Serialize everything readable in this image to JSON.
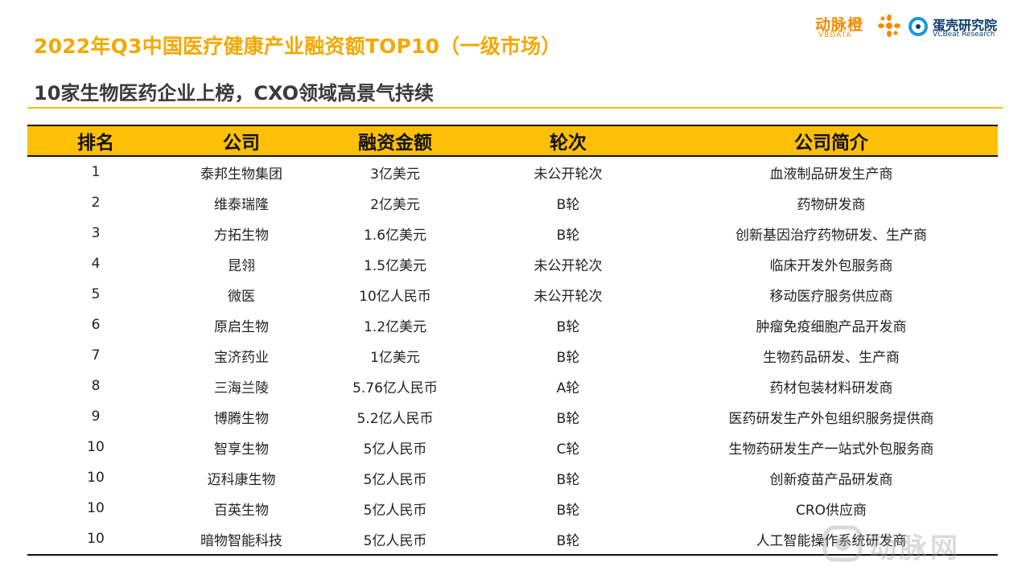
{
  "header": {
    "title": "2022年Q3中国医疗健康产业融资额TOP10（一级市场）",
    "subtitle": "10家生物医药企业上榜，CXO领域高景气持续"
  },
  "logos": {
    "vbdata_cn": "动脉橙",
    "vbdata_en": "VBDATA",
    "vcbeat_cn": "蛋壳研究院",
    "vcbeat_en": "VCBeat Research"
  },
  "table": {
    "columns": [
      "排名",
      "公司",
      "融资金额",
      "轮次",
      "公司简介"
    ],
    "rows": [
      [
        "1",
        "泰邦生物集团",
        "3亿美元",
        "未公开轮次",
        "血液制品研发生产商"
      ],
      [
        "2",
        "维泰瑞隆",
        "2亿美元",
        "B轮",
        "药物研发商"
      ],
      [
        "3",
        "方拓生物",
        "1.6亿美元",
        "B轮",
        "创新基因治疗药物研发、生产商"
      ],
      [
        "4",
        "昆翎",
        "1.5亿美元",
        "未公开轮次",
        "临床开发外包服务商"
      ],
      [
        "5",
        "微医",
        "10亿人民币",
        "未公开轮次",
        "移动医疗服务供应商"
      ],
      [
        "6",
        "原启生物",
        "1.2亿美元",
        "B轮",
        "肿瘤免疫细胞产品开发商"
      ],
      [
        "7",
        "宝济药业",
        "1亿美元",
        "B轮",
        "生物药品研发、生产商"
      ],
      [
        "8",
        "三海兰陵",
        "5.76亿人民币",
        "A轮",
        "药材包装材料研发商"
      ],
      [
        "9",
        "博腾生物",
        "5.2亿人民币",
        "B轮",
        "医药研发生产外包组织服务提供商"
      ],
      [
        "10",
        "智享生物",
        "5亿人民币",
        "C轮",
        "生物药研发生产一站式外包服务商"
      ],
      [
        "10",
        "迈科康生物",
        "5亿人民币",
        "B轮",
        "创新疫苗产品研发商"
      ],
      [
        "10",
        "百英生物",
        "5亿人民币",
        "B轮",
        "CRO供应商"
      ],
      [
        "10",
        "暗物智能科技",
        "5亿人民币",
        "B轮",
        "人工智能操作系统研发商"
      ]
    ]
  },
  "watermark": {
    "text": "动脉网",
    "icon": "vb-logo-icon"
  },
  "colors": {
    "accent": "#f2a900",
    "header_fill": "#fec007",
    "rule": "#f2c200",
    "vcbeat_blue": "#0c3b6e"
  }
}
